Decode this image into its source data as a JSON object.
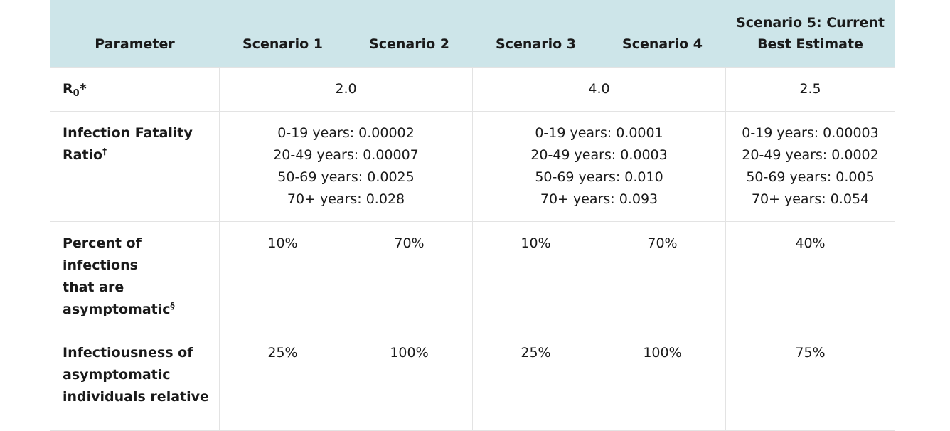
{
  "header": {
    "parameter": "Parameter",
    "scenario1": "Scenario 1",
    "scenario2": "Scenario 2",
    "scenario3": "Scenario 3",
    "scenario4": "Scenario 4",
    "scenario5_line1": "Scenario 5: Current",
    "scenario5_line2": "Best Estimate"
  },
  "rows": {
    "r0": {
      "label_main": "R",
      "label_sub": "0",
      "label_suffix": "*",
      "s12": "2.0",
      "s34": "4.0",
      "s5": "2.5"
    },
    "ifr": {
      "label_line1": "Infection Fatality",
      "label_line2": "Ratio",
      "label_mark": "†",
      "s12": [
        "0-19 years: 0.00002",
        "20-49 years: 0.00007",
        "50-69 years: 0.0025",
        "70+ years: 0.028"
      ],
      "s34": [
        "0-19 years: 0.0001",
        "20-49 years: 0.0003",
        "50-69 years: 0.010",
        "70+ years: 0.093"
      ],
      "s5": [
        "0-19 years: 0.00003",
        "20-49 years: 0.0002",
        "50-69 years: 0.005",
        "70+ years: 0.054"
      ]
    },
    "asymptomatic": {
      "label_line1": "Percent of infections",
      "label_line2": "that are",
      "label_line3": "asymptomatic",
      "label_mark": "§",
      "s1": "10%",
      "s2": "70%",
      "s3": "10%",
      "s4": "70%",
      "s5": "40%"
    },
    "infectiousness": {
      "label_line1": "Infectiousness of",
      "label_line2": "asymptomatic",
      "label_line3": "individuals relative",
      "s1": "25%",
      "s2": "100%",
      "s3": "25%",
      "s4": "100%",
      "s5": "75%"
    }
  }
}
